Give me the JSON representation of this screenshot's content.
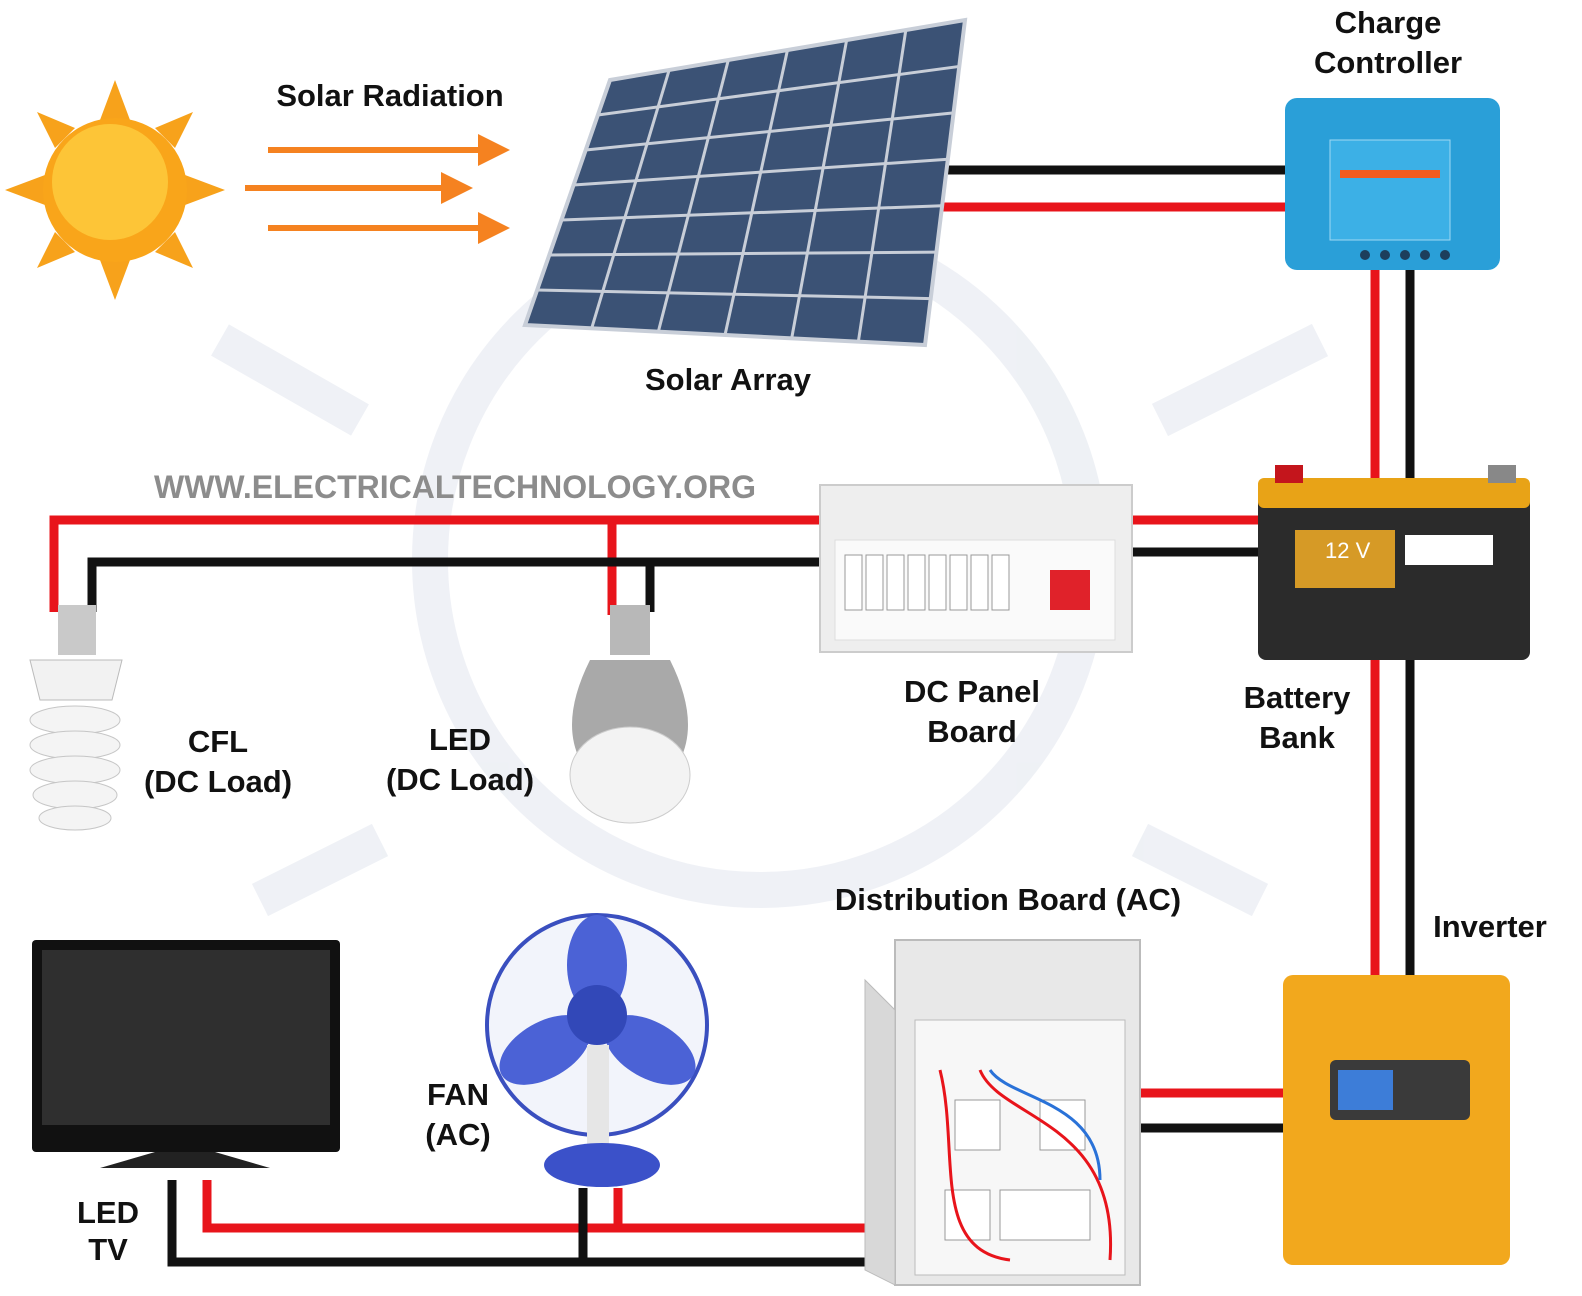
{
  "title_labels": {
    "solar_radiation": "Solar Radiation",
    "solar_array": "Solar Array",
    "charge_controller": [
      "Charge",
      "Controller"
    ],
    "battery_bank": [
      "Battery",
      "Bank"
    ],
    "battery_voltage": "12 V",
    "inverter": "Inverter",
    "dc_panel_board": [
      "DC Panel",
      "Board"
    ],
    "distribution_board": "Distribution Board (AC)",
    "cfl": [
      "CFL",
      "(DC Load)"
    ],
    "led": [
      "LED",
      "(DC Load)"
    ],
    "fan": [
      "FAN",
      "(AC)"
    ],
    "led_tv": [
      "LED",
      "TV"
    ],
    "watermark": "WWW.ELECTRICALTECHNOLOGY.ORG"
  }
}
